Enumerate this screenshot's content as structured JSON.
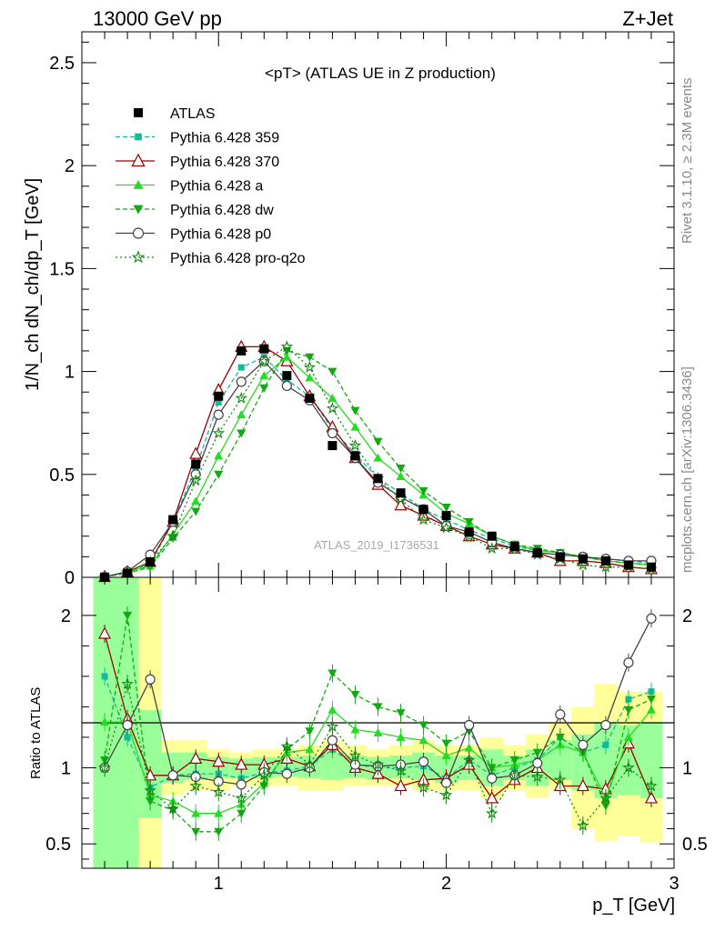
{
  "header": {
    "left": "13000 GeV pp",
    "right": "Z+Jet"
  },
  "side": {
    "rivet": "Rivet 3.1.10, ≥ 2.3M events",
    "mcplots": "mcplots.cern.ch [arXiv:1306.3436]"
  },
  "chart_data": {
    "type": "line",
    "title": "<pT> (ATLAS UE in Z production)",
    "analysis_label": "ATLAS_2019_I1736531",
    "xlabel": "p_T [GeV]",
    "ylabel": "1/N_ch dN_ch/dp_T [GeV]",
    "ratio_ylabel": "Ratio to ATLAS",
    "xlim": [
      0.4,
      3.0
    ],
    "ylim": [
      0,
      2.65
    ],
    "ratio_ylim": [
      0.34,
      2.25
    ],
    "xticks": [
      "1",
      "2",
      "3"
    ],
    "yticks": [
      "0",
      "0.5",
      "1",
      "1.5",
      "2",
      "2.5"
    ],
    "ratio_yticks": [
      "0.5",
      "1",
      "2"
    ],
    "x": [
      0.5,
      0.6,
      0.7,
      0.8,
      0.9,
      1.0,
      1.1,
      1.2,
      1.3,
      1.4,
      1.5,
      1.6,
      1.7,
      1.8,
      1.9,
      2.0,
      2.1,
      2.2,
      2.3,
      2.4,
      2.5,
      2.6,
      2.7,
      2.8,
      2.9
    ],
    "data": {
      "name": "ATLAS",
      "values": [
        0.001,
        0.02,
        0.075,
        0.28,
        0.55,
        0.88,
        1.1,
        1.11,
        0.98,
        0.87,
        0.64,
        0.59,
        0.48,
        0.41,
        0.33,
        0.3,
        0.22,
        0.2,
        0.15,
        0.12,
        0.1,
        0.09,
        0.08,
        0.06,
        0.05
      ]
    },
    "series": [
      {
        "name": "Pythia 6.428 359",
        "color": "#11bb99",
        "marker": "square",
        "dash": "5,3",
        "values": [
          0.003,
          0.024,
          0.065,
          0.27,
          0.53,
          0.85,
          1.02,
          1.07,
          0.96,
          0.88,
          0.72,
          0.6,
          0.48,
          0.41,
          0.33,
          0.28,
          0.23,
          0.19,
          0.15,
          0.13,
          0.12,
          0.1,
          0.09,
          0.08,
          0.07
        ],
        "ratio": [
          1.6,
          1.2,
          0.87,
          0.95,
          0.96,
          0.96,
          0.93,
          0.97,
          0.98,
          1.01,
          1.12,
          1.02,
          1.0,
          1.0,
          1.01,
          0.93,
          1.05,
          0.95,
          1.0,
          1.05,
          1.2,
          1.1,
          1.15,
          1.45,
          1.5
        ]
      },
      {
        "name": "Pythia 6.428 370",
        "color": "#990000",
        "marker": "triangle-open",
        "dash": "",
        "values": [
          0.002,
          0.027,
          0.075,
          0.27,
          0.6,
          0.91,
          1.12,
          1.12,
          1.05,
          0.88,
          0.73,
          0.58,
          0.45,
          0.35,
          0.3,
          0.25,
          0.2,
          0.16,
          0.14,
          0.12,
          0.08,
          0.08,
          0.07,
          0.05,
          0.04
        ],
        "ratio": [
          1.88,
          1.32,
          0.95,
          0.95,
          1.06,
          1.04,
          1.02,
          1.02,
          1.06,
          1.01,
          1.15,
          1.0,
          0.96,
          0.88,
          0.92,
          0.93,
          1.02,
          0.8,
          0.92,
          1.0,
          0.88,
          0.88,
          0.86,
          1.16,
          0.8
        ]
      },
      {
        "name": "Pythia 6.428 a",
        "color": "#22dd22",
        "marker": "triangle-filled",
        "dash": "",
        "values": [
          0.003,
          0.028,
          0.055,
          0.21,
          0.37,
          0.59,
          0.79,
          0.98,
          1.07,
          0.97,
          0.87,
          0.73,
          0.58,
          0.49,
          0.4,
          0.31,
          0.26,
          0.2,
          0.16,
          0.13,
          0.12,
          0.1,
          0.08,
          0.07,
          0.06
        ],
        "ratio": [
          1.3,
          1.3,
          0.82,
          0.78,
          0.7,
          0.7,
          0.76,
          0.9,
          1.1,
          1.12,
          1.38,
          1.25,
          1.23,
          1.2,
          1.18,
          1.08,
          1.13,
          1.0,
          1.02,
          1.05,
          1.15,
          1.1,
          0.8,
          1.2,
          1.38
        ]
      },
      {
        "name": "Pythia 6.428 dw",
        "color": "#11aa11",
        "marker": "triangle-down",
        "dash": "5,3",
        "values": [
          0.002,
          0.02,
          0.05,
          0.19,
          0.32,
          0.5,
          0.7,
          0.92,
          1.1,
          1.07,
          1.0,
          0.81,
          0.66,
          0.53,
          0.42,
          0.34,
          0.27,
          0.2,
          0.16,
          0.14,
          0.12,
          0.1,
          0.08,
          0.07,
          0.06
        ],
        "ratio": [
          1.05,
          2.0,
          0.78,
          0.72,
          0.58,
          0.58,
          0.7,
          0.88,
          1.12,
          1.24,
          1.62,
          1.48,
          1.4,
          1.36,
          1.28,
          1.16,
          1.24,
          1.0,
          1.05,
          1.1,
          1.2,
          1.1,
          0.75,
          1.38,
          1.45
        ]
      },
      {
        "name": "Pythia 6.428 p0",
        "color": "#444444",
        "marker": "circle-open",
        "dash": "",
        "values": [
          0.002,
          0.028,
          0.11,
          0.27,
          0.5,
          0.79,
          0.95,
          1.05,
          0.93,
          0.86,
          0.7,
          0.58,
          0.46,
          0.39,
          0.33,
          0.25,
          0.22,
          0.17,
          0.14,
          0.12,
          0.11,
          0.1,
          0.09,
          0.08,
          0.08
        ],
        "ratio": [
          1.0,
          1.28,
          1.58,
          0.95,
          0.94,
          0.91,
          0.89,
          0.97,
          0.96,
          1.0,
          1.18,
          1.02,
          1.01,
          1.02,
          1.04,
          0.9,
          1.28,
          0.93,
          0.95,
          1.03,
          1.35,
          1.15,
          1.28,
          1.69,
          1.98
        ]
      },
      {
        "name": "Pythia 6.428 pro-q2o",
        "color": "#118811",
        "marker": "star",
        "dash": "2,3",
        "values": [
          0.002,
          0.025,
          0.075,
          0.2,
          0.47,
          0.7,
          0.87,
          1.05,
          1.12,
          1.02,
          0.82,
          0.64,
          0.48,
          0.38,
          0.28,
          0.24,
          0.2,
          0.14,
          0.14,
          0.11,
          0.09,
          0.06,
          0.05,
          0.05,
          0.04
        ],
        "ratio": [
          1.0,
          1.55,
          0.85,
          0.73,
          0.88,
          0.84,
          0.8,
          0.95,
          1.14,
          1.02,
          1.27,
          1.08,
          1.02,
          0.98,
          0.87,
          0.82,
          1.05,
          0.7,
          0.95,
          0.94,
          0.92,
          0.62,
          0.8,
          1.0,
          0.88
        ]
      }
    ],
    "bands": {
      "yellow_lo": [
        0.34,
        0.34,
        0.34,
        0.82,
        0.85,
        0.85,
        0.88,
        0.88,
        0.88,
        0.85,
        0.85,
        0.88,
        0.88,
        0.88,
        0.85,
        0.85,
        0.85,
        0.8,
        0.85,
        0.8,
        0.85,
        0.6,
        0.52,
        0.55,
        0.51
      ],
      "yellow_hi": [
        2.25,
        2.25,
        2.25,
        1.18,
        1.18,
        1.12,
        1.1,
        1.12,
        1.12,
        1.15,
        1.18,
        1.15,
        1.12,
        1.15,
        1.18,
        1.15,
        1.15,
        1.2,
        1.15,
        1.22,
        1.3,
        1.4,
        1.55,
        1.5,
        1.5
      ],
      "green_lo": [
        0.34,
        0.34,
        0.67,
        0.9,
        0.92,
        0.93,
        0.93,
        0.93,
        0.94,
        0.93,
        0.92,
        0.93,
        0.92,
        0.93,
        0.92,
        0.9,
        0.92,
        0.88,
        0.92,
        0.88,
        0.92,
        0.85,
        0.8,
        0.82,
        0.8
      ],
      "green_hi": [
        2.25,
        2.25,
        1.38,
        1.1,
        1.1,
        1.07,
        1.06,
        1.07,
        1.07,
        1.08,
        1.1,
        1.08,
        1.07,
        1.08,
        1.1,
        1.08,
        1.08,
        1.12,
        1.08,
        1.12,
        1.18,
        1.22,
        1.3,
        1.28,
        1.3
      ]
    }
  }
}
